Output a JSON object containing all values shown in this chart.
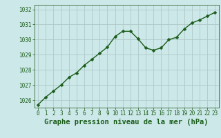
{
  "x": [
    0,
    1,
    2,
    3,
    4,
    5,
    6,
    7,
    8,
    9,
    10,
    11,
    12,
    13,
    14,
    15,
    16,
    17,
    18,
    19,
    20,
    21,
    22,
    23
  ],
  "y": [
    1025.7,
    1026.2,
    1026.6,
    1027.0,
    1027.5,
    1027.8,
    1028.3,
    1028.7,
    1029.1,
    1029.5,
    1030.2,
    1030.55,
    1030.55,
    1030.05,
    1029.45,
    1029.3,
    1029.45,
    1030.0,
    1030.15,
    1030.7,
    1031.1,
    1031.3,
    1031.55,
    1031.8
  ],
  "line_color": "#1a5c1a",
  "marker_color": "#1a5c1a",
  "bg_color": "#cce8e8",
  "grid_color": "#b0c8c8",
  "xlabel": "Graphe pression niveau de la mer (hPa)",
  "xlabel_color": "#1a5c1a",
  "tick_color": "#1a5c1a",
  "ylim": [
    1025.5,
    1032.3
  ],
  "yticks": [
    1026,
    1027,
    1028,
    1029,
    1030,
    1031,
    1032
  ],
  "xticks": [
    0,
    1,
    2,
    3,
    4,
    5,
    6,
    7,
    8,
    9,
    10,
    11,
    12,
    13,
    14,
    15,
    16,
    17,
    18,
    19,
    20,
    21,
    22,
    23
  ],
  "xlim": [
    -0.5,
    23.5
  ],
  "marker_size": 2.5,
  "line_width": 1.0,
  "tick_label_fontsize": 5.5,
  "xlabel_fontsize": 7.5
}
